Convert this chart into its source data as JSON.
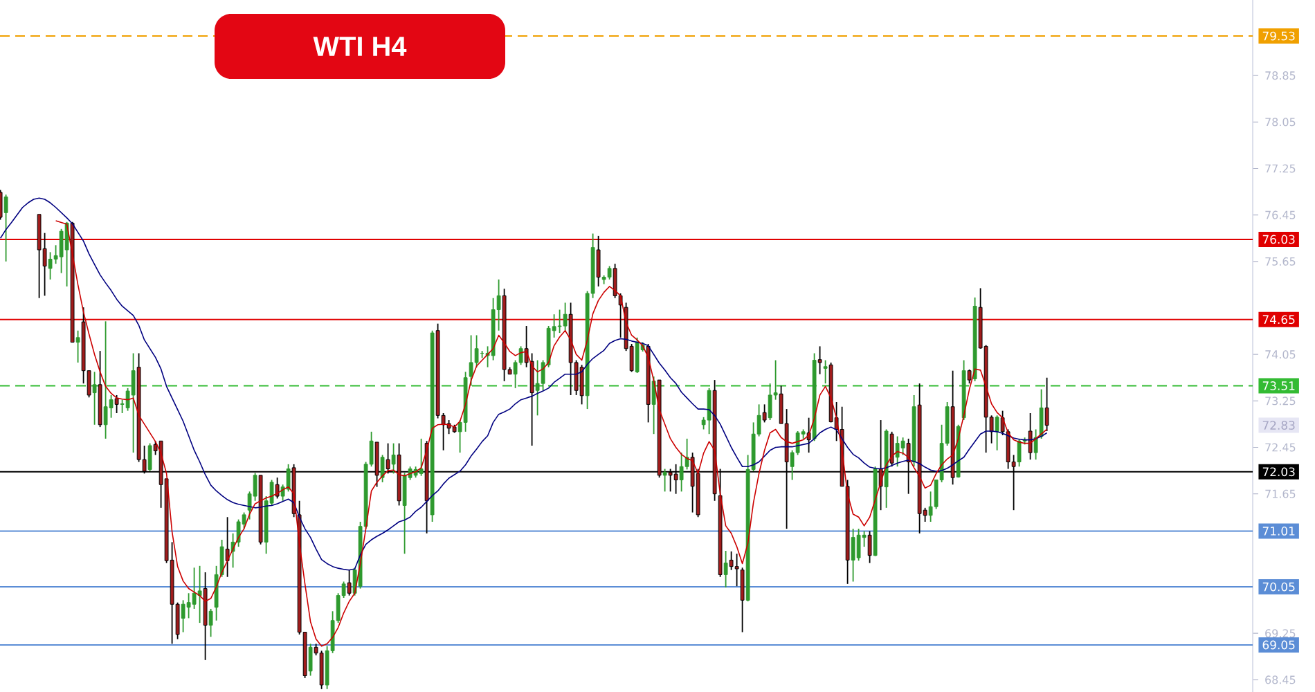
{
  "chart_data": {
    "type": "candlestick",
    "title": "WTI H4",
    "categories": [
      null,
      null,
      null,
      null,
      null,
      null,
      null,
      null,
      null,
      null,
      null,
      null,
      null,
      null,
      null,
      null,
      null,
      null,
      null,
      null,
      null,
      null,
      null,
      null,
      null,
      null,
      null,
      null,
      null,
      null,
      null,
      null,
      null,
      null,
      null,
      null,
      null,
      null,
      null,
      null,
      null,
      null,
      null,
      null,
      null,
      null,
      null,
      null,
      null,
      null,
      null,
      null,
      null,
      null,
      null,
      null,
      null,
      null,
      null,
      null,
      null,
      null,
      null,
      null,
      null,
      null,
      null,
      null,
      null,
      null,
      null,
      null,
      null,
      null,
      null,
      null,
      null,
      null,
      null,
      null,
      null,
      null,
      null,
      null,
      null,
      null,
      null,
      null,
      null,
      null,
      null,
      null,
      null,
      null,
      null,
      null,
      null,
      null,
      null,
      null,
      null,
      null,
      null,
      null,
      null,
      null,
      null,
      null,
      null,
      null,
      null,
      null,
      null,
      null,
      null,
      null,
      null,
      null,
      null,
      null,
      null,
      null,
      null,
      null,
      null,
      null,
      null,
      null,
      null,
      null,
      null,
      null,
      null,
      null,
      null,
      null,
      null,
      null,
      null,
      null,
      null,
      null,
      null,
      null,
      null,
      null,
      null,
      null,
      null,
      null,
      null,
      null,
      null,
      null,
      null,
      null,
      null,
      null,
      null,
      null,
      null,
      null,
      null,
      null,
      null,
      null,
      null,
      null,
      null,
      null,
      null,
      null,
      null,
      null,
      null,
      null,
      null,
      null,
      null,
      null,
      null,
      null,
      null,
      null,
      null,
      null,
      null,
      null,
      null,
      null
    ],
    "ohlc": [
      [
        76.84,
        76.88,
        76.37,
        76.41
      ],
      [
        76.49,
        76.8,
        75.65,
        76.76
      ],
      null,
      null,
      null,
      null,
      null,
      [
        76.46,
        76.46,
        75.02,
        75.85
      ],
      [
        75.87,
        76.14,
        75.06,
        75.57
      ],
      [
        75.53,
        75.81,
        75.34,
        75.69
      ],
      [
        75.69,
        75.93,
        75.61,
        75.75
      ],
      [
        75.73,
        76.21,
        75.45,
        76.17
      ],
      [
        75.85,
        76.33,
        75.22,
        76.31
      ],
      [
        76.31,
        76.33,
        74.26,
        74.26
      ],
      [
        74.26,
        74.46,
        73.91,
        74.34
      ],
      [
        74.61,
        74.86,
        73.55,
        73.77
      ],
      [
        73.77,
        73.77,
        73.31,
        73.35
      ],
      [
        73.39,
        73.75,
        72.84,
        73.53
      ],
      [
        73.53,
        74.11,
        72.8,
        72.84
      ],
      [
        72.84,
        74.62,
        72.6,
        73.15
      ],
      [
        73.13,
        73.35,
        72.96,
        73.27
      ],
      [
        73.29,
        73.35,
        73.04,
        73.19
      ],
      [
        73.19,
        73.27,
        73.04,
        73.2
      ],
      [
        73.13,
        73.47,
        73.08,
        73.42
      ],
      [
        73.35,
        74.07,
        72.36,
        73.77
      ],
      [
        73.83,
        74.07,
        72.2,
        72.24
      ],
      [
        72.24,
        72.48,
        72.0,
        72.04
      ],
      [
        72.07,
        72.52,
        72.04,
        72.48
      ],
      [
        72.5,
        72.56,
        72.32,
        72.39
      ],
      [
        72.56,
        72.56,
        71.41,
        71.81
      ],
      [
        71.91,
        71.91,
        70.46,
        70.5
      ],
      [
        70.51,
        70.82,
        69.07,
        69.75
      ],
      [
        69.75,
        69.78,
        69.15,
        69.23
      ],
      [
        69.51,
        69.82,
        69.27,
        69.75
      ],
      [
        69.7,
        69.94,
        69.51,
        69.78
      ],
      [
        69.75,
        70.38,
        69.67,
        69.94
      ],
      [
        69.9,
        70.41,
        69.43,
        69.98
      ],
      [
        70.02,
        70.3,
        68.79,
        69.39
      ],
      [
        69.39,
        69.67,
        69.19,
        69.63
      ],
      [
        69.7,
        70.41,
        69.47,
        70.26
      ],
      [
        70.26,
        70.86,
        70.22,
        70.74
      ],
      [
        70.7,
        71.25,
        70.22,
        70.5
      ],
      [
        70.66,
        70.97,
        70.38,
        70.82
      ],
      [
        70.82,
        71.21,
        70.74,
        71.17
      ],
      [
        71.13,
        71.33,
        71.05,
        71.29
      ],
      [
        71.37,
        71.69,
        71.21,
        71.65
      ],
      [
        71.61,
        72.01,
        71.53,
        71.97
      ],
      [
        71.97,
        71.97,
        70.78,
        70.82
      ],
      [
        70.82,
        71.61,
        70.62,
        71.53
      ],
      [
        71.49,
        71.89,
        71.45,
        71.85
      ],
      [
        71.81,
        71.93,
        71.57,
        71.61
      ],
      [
        71.61,
        71.81,
        71.53,
        71.77
      ],
      [
        71.73,
        72.16,
        71.69,
        72.08
      ],
      [
        72.1,
        72.16,
        71.25,
        71.31
      ],
      [
        71.29,
        71.53,
        69.23,
        69.27
      ],
      [
        69.27,
        69.27,
        68.48,
        68.52
      ],
      [
        68.6,
        69.07,
        68.52,
        69.01
      ],
      [
        69.01,
        69.07,
        68.87,
        68.91
      ],
      [
        68.91,
        68.95,
        68.29,
        68.36
      ],
      [
        68.36,
        69.03,
        68.29,
        68.95
      ],
      [
        68.95,
        69.63,
        68.91,
        69.47
      ],
      [
        69.47,
        69.94,
        69.43,
        69.9
      ],
      [
        69.9,
        70.14,
        69.86,
        70.1
      ],
      [
        70.12,
        70.34,
        69.9,
        69.94
      ],
      [
        69.94,
        70.38,
        69.9,
        70.34
      ],
      [
        70.06,
        71.17,
        70.02,
        71.09
      ],
      [
        71.09,
        72.2,
        71.05,
        72.16
      ],
      [
        72.16,
        72.72,
        72.12,
        72.56
      ],
      [
        72.54,
        72.54,
        71.77,
        71.97
      ],
      [
        71.93,
        72.32,
        71.85,
        72.28
      ],
      [
        72.24,
        72.52,
        72.0,
        72.08
      ],
      [
        72.16,
        72.52,
        72.0,
        72.32
      ],
      [
        72.32,
        72.52,
        71.45,
        71.53
      ],
      [
        71.45,
        72.01,
        70.62,
        71.97
      ],
      [
        71.93,
        72.12,
        71.89,
        72.08
      ],
      [
        71.97,
        72.12,
        71.93,
        72.07
      ],
      [
        72.0,
        72.6,
        71.96,
        72.08
      ],
      [
        72.52,
        72.56,
        70.97,
        71.53
      ],
      [
        71.29,
        74.46,
        71.17,
        74.42
      ],
      [
        74.46,
        74.58,
        72.95,
        73.0
      ],
      [
        73.0,
        73.04,
        72.4,
        72.84
      ],
      [
        72.86,
        72.92,
        72.68,
        72.78
      ],
      [
        72.8,
        72.84,
        72.7,
        72.72
      ],
      [
        72.72,
        72.92,
        72.36,
        72.88
      ],
      [
        72.88,
        73.75,
        72.72,
        73.65
      ],
      [
        73.67,
        74.38,
        73.51,
        73.91
      ],
      [
        73.91,
        74.38,
        73.83,
        74.15
      ],
      [
        74.07,
        74.11,
        73.99,
        74.07
      ],
      [
        74.03,
        74.19,
        73.83,
        74.07
      ],
      [
        74.03,
        75.02,
        73.95,
        74.82
      ],
      [
        74.82,
        75.34,
        74.46,
        75.06
      ],
      [
        75.06,
        75.18,
        73.59,
        73.79
      ],
      [
        73.79,
        73.83,
        73.71,
        73.71
      ],
      [
        73.71,
        73.95,
        73.47,
        73.91
      ],
      [
        73.91,
        74.19,
        73.87,
        74.15
      ],
      [
        74.15,
        74.54,
        73.83,
        73.91
      ],
      [
        73.93,
        74.07,
        72.48,
        73.39
      ],
      [
        73.43,
        73.95,
        73.0,
        73.55
      ],
      [
        73.55,
        73.95,
        73.43,
        73.91
      ],
      [
        73.87,
        74.54,
        73.83,
        74.5
      ],
      [
        74.46,
        74.74,
        74.34,
        74.53
      ],
      [
        74.53,
        74.82,
        74.42,
        74.54
      ],
      [
        74.54,
        74.94,
        74.46,
        74.74
      ],
      [
        74.74,
        74.94,
        73.35,
        73.91
      ],
      [
        73.91,
        73.95,
        73.35,
        73.43
      ],
      [
        73.83,
        73.87,
        73.19,
        73.34
      ],
      [
        73.34,
        75.14,
        73.11,
        75.1
      ],
      [
        75.1,
        76.13,
        75.02,
        75.89
      ],
      [
        75.85,
        76.09,
        75.22,
        75.38
      ],
      [
        75.34,
        75.41,
        75.26,
        75.38
      ],
      [
        75.38,
        75.57,
        75.34,
        75.53
      ],
      [
        75.53,
        75.61,
        75.02,
        75.06
      ],
      [
        75.06,
        75.1,
        74.34,
        74.9
      ],
      [
        74.86,
        74.94,
        74.11,
        74.15
      ],
      [
        74.19,
        74.23,
        73.75,
        73.77
      ],
      [
        73.75,
        74.34,
        73.73,
        74.26
      ],
      [
        74.13,
        74.26,
        74.1,
        74.21
      ],
      [
        74.19,
        74.23,
        72.88,
        73.19
      ],
      [
        73.19,
        73.67,
        72.68,
        73.59
      ],
      [
        73.61,
        73.61,
        71.93,
        71.97
      ],
      [
        71.97,
        72.08,
        71.69,
        72.02
      ],
      [
        72.02,
        72.08,
        71.69,
        71.97
      ],
      [
        71.99,
        72.16,
        71.65,
        71.89
      ],
      [
        71.89,
        72.36,
        71.69,
        72.12
      ],
      [
        72.12,
        72.6,
        72.07,
        72.28
      ],
      [
        72.28,
        72.36,
        71.33,
        71.78
      ],
      [
        72.0,
        72.08,
        71.25,
        71.29
      ],
      [
        72.84,
        72.97,
        72.76,
        72.92
      ],
      [
        72.92,
        73.47,
        72.68,
        73.43
      ],
      [
        73.43,
        73.61,
        71.53,
        71.65
      ],
      [
        71.62,
        72.08,
        70.22,
        70.26
      ],
      [
        70.26,
        70.67,
        70.04,
        70.46
      ],
      [
        70.51,
        70.66,
        70.34,
        70.4
      ],
      [
        70.4,
        70.62,
        70.06,
        70.36
      ],
      [
        70.34,
        70.38,
        69.27,
        69.82
      ],
      [
        69.82,
        72.32,
        69.8,
        72.07
      ],
      [
        72.07,
        72.88,
        72.04,
        72.68
      ],
      [
        72.68,
        73.19,
        72.64,
        73.0
      ],
      [
        73.05,
        73.19,
        72.88,
        72.92
      ],
      [
        72.96,
        73.55,
        72.92,
        73.35
      ],
      [
        73.35,
        73.95,
        73.27,
        73.39
      ],
      [
        73.37,
        73.51,
        72.86,
        72.86
      ],
      [
        72.86,
        73.11,
        71.05,
        72.2
      ],
      [
        72.12,
        72.4,
        71.89,
        72.36
      ],
      [
        72.36,
        72.73,
        72.32,
        72.7
      ],
      [
        72.68,
        72.76,
        72.6,
        72.72
      ],
      [
        72.7,
        72.96,
        72.36,
        72.58
      ],
      [
        72.6,
        74.07,
        72.56,
        73.95
      ],
      [
        73.96,
        74.19,
        73.71,
        73.91
      ],
      [
        73.81,
        73.95,
        73.55,
        73.84
      ],
      [
        73.87,
        73.91,
        72.88,
        72.89
      ],
      [
        72.96,
        73.23,
        72.56,
        72.76
      ],
      [
        72.76,
        73.15,
        71.78,
        71.78
      ],
      [
        71.78,
        71.89,
        70.1,
        70.51
      ],
      [
        70.51,
        71.05,
        70.14,
        70.9
      ],
      [
        70.55,
        71.05,
        70.5,
        70.94
      ],
      [
        70.9,
        71.01,
        70.74,
        70.94
      ],
      [
        70.94,
        71.01,
        70.46,
        70.59
      ],
      [
        70.59,
        72.12,
        70.58,
        72.08
      ],
      [
        72.08,
        72.92,
        71.37,
        71.78
      ],
      [
        71.77,
        72.76,
        71.41,
        72.73
      ],
      [
        72.68,
        72.72,
        72.12,
        72.18
      ],
      [
        72.28,
        72.64,
        72.12,
        72.52
      ],
      [
        72.44,
        72.62,
        72.32,
        72.56
      ],
      [
        72.52,
        72.6,
        71.65,
        72.2
      ],
      [
        72.2,
        73.35,
        72.12,
        73.15
      ],
      [
        73.18,
        73.55,
        70.97,
        71.31
      ],
      [
        71.37,
        71.41,
        71.17,
        71.28
      ],
      [
        71.28,
        71.69,
        71.17,
        71.43
      ],
      [
        71.43,
        71.89,
        71.39,
        71.89
      ],
      [
        71.89,
        72.84,
        71.85,
        72.52
      ],
      [
        72.52,
        73.23,
        72.48,
        73.15
      ],
      [
        73.15,
        73.77,
        71.81,
        71.93
      ],
      [
        71.94,
        72.84,
        71.93,
        72.81
      ],
      [
        72.96,
        73.95,
        72.92,
        73.77
      ],
      [
        73.77,
        73.79,
        73.55,
        73.61
      ],
      [
        73.63,
        75.03,
        73.59,
        74.88
      ],
      [
        74.86,
        75.19,
        74.15,
        74.16
      ],
      [
        74.19,
        74.21,
        72.36,
        72.97
      ],
      [
        72.97,
        73.0,
        72.52,
        72.72
      ],
      [
        72.72,
        73.0,
        72.4,
        72.97
      ],
      [
        72.96,
        73.08,
        72.66,
        72.72
      ],
      [
        72.72,
        72.76,
        72.08,
        72.2
      ],
      [
        72.2,
        72.32,
        71.37,
        72.12
      ],
      [
        72.2,
        72.6,
        72.12,
        72.56
      ],
      [
        72.56,
        72.62,
        72.5,
        72.58
      ],
      [
        72.73,
        73.04,
        72.24,
        72.36
      ],
      [
        72.36,
        72.76,
        72.24,
        72.62
      ],
      [
        72.64,
        73.45,
        72.6,
        73.13
      ],
      [
        73.13,
        73.65,
        72.73,
        72.83
      ]
    ],
    "series": [
      {
        "type": "line",
        "color": "#000080",
        "values": [
          76.05,
          76.2,
          76.32,
          76.45,
          76.58,
          76.66,
          76.72,
          76.74,
          76.72,
          76.66,
          76.58,
          76.49,
          76.4,
          76.3,
          76.15,
          76.0,
          75.78,
          75.6,
          75.42,
          75.28,
          75.15,
          75.0,
          74.88,
          74.8,
          74.72,
          74.55,
          74.3,
          74.15,
          74.0,
          73.8,
          73.5,
          73.3,
          73.1,
          72.9,
          72.65,
          72.4,
          72.2,
          71.98,
          71.8,
          71.7,
          71.62,
          71.55,
          71.5,
          71.47,
          71.45,
          71.43,
          71.41,
          71.42,
          71.44,
          71.45,
          71.48,
          71.52,
          71.56,
          71.5,
          71.25,
          71.05,
          70.9,
          70.7,
          70.52,
          70.45,
          70.4,
          70.37,
          70.35,
          70.34,
          70.36,
          70.6,
          70.78,
          70.86,
          70.92,
          70.97,
          71.03,
          71.1,
          71.17,
          71.2,
          71.25,
          71.35,
          71.42,
          71.52,
          71.62,
          71.7,
          71.82,
          71.92,
          71.98,
          72.04,
          72.15,
          72.3,
          72.42,
          72.55,
          72.65,
          72.88,
          73.02,
          73.06,
          73.11,
          73.2,
          73.27,
          73.3,
          73.33,
          73.38,
          73.42,
          73.47,
          73.57,
          73.64,
          73.71,
          73.71,
          73.71,
          73.75,
          73.88,
          73.98,
          74.05,
          74.12,
          74.24,
          74.29,
          74.32,
          74.31,
          74.28,
          74.26,
          74.24,
          74.2,
          74.05,
          73.9,
          73.78,
          73.65,
          73.55,
          73.4,
          73.3,
          73.2,
          73.11,
          73.11,
          73.1,
          73.0,
          72.85,
          72.65,
          72.45,
          72.28,
          72.12,
          72.12,
          72.15,
          72.2,
          72.3,
          72.4,
          72.45,
          72.46,
          72.46,
          72.46,
          72.48,
          72.5,
          72.52,
          72.6,
          72.7,
          72.76,
          72.8,
          72.75,
          72.6,
          72.45,
          72.33,
          72.27,
          72.18,
          72.11,
          72.09,
          72.08,
          72.1,
          72.14,
          72.18,
          72.21,
          72.23,
          72.21,
          72.17,
          72.11,
          72.06,
          72.04,
          72.05,
          72.09,
          72.15,
          72.22,
          72.28,
          72.42,
          72.55,
          72.68,
          72.73,
          72.73,
          72.72,
          72.69,
          72.65,
          72.61,
          72.59,
          72.58,
          72.58,
          72.6,
          72.64,
          72.7
        ]
      },
      {
        "type": "line",
        "color": "#cc0000",
        "values": [
          null,
          null,
          null,
          null,
          null,
          null,
          null,
          null,
          null,
          null,
          76.35,
          76.32,
          76.29,
          75.78,
          75.25,
          74.78,
          74.4,
          74.05,
          73.75,
          73.5,
          73.38,
          73.3,
          73.28,
          73.27,
          73.3,
          73.0,
          72.85,
          72.7,
          72.55,
          72.35,
          72.0,
          71.0,
          70.4,
          70.15,
          70.02,
          69.96,
          69.9,
          69.8,
          69.85,
          70.05,
          70.3,
          70.5,
          70.7,
          70.9,
          71.05,
          71.3,
          71.48,
          71.53,
          71.58,
          71.61,
          71.66,
          71.72,
          71.77,
          71.65,
          70.8,
          70.1,
          69.45,
          69.15,
          69.03,
          69.07,
          69.18,
          69.35,
          69.6,
          69.8,
          69.94,
          70.45,
          71.05,
          71.7,
          71.85,
          71.96,
          72.05,
          72.06,
          71.98,
          71.96,
          72.0,
          72.03,
          72.1,
          72.4,
          72.78,
          72.84,
          72.85,
          72.84,
          72.8,
          72.9,
          73.19,
          73.6,
          73.85,
          73.95,
          74.05,
          74.15,
          74.38,
          74.25,
          74.1,
          74.03,
          74.08,
          74.1,
          73.85,
          73.75,
          73.8,
          73.91,
          74.2,
          74.35,
          74.46,
          74.3,
          74.05,
          73.95,
          74.3,
          74.75,
          74.98,
          75.12,
          75.22,
          75.15,
          75.06,
          74.6,
          74.38,
          74.3,
          74.2,
          74.0,
          73.6,
          73.1,
          72.85,
          72.6,
          72.45,
          72.33,
          72.26,
          72.22,
          72.0,
          72.35,
          72.55,
          72.4,
          71.65,
          71.1,
          70.97,
          70.74,
          70.45,
          70.8,
          71.5,
          72.0,
          72.4,
          72.7,
          72.76,
          72.62,
          72.55,
          72.52,
          72.55,
          72.58,
          72.66,
          72.95,
          73.35,
          73.5,
          73.3,
          72.96,
          72.4,
          71.65,
          71.3,
          71.25,
          71.1,
          71.25,
          71.55,
          71.85,
          72.15,
          72.3,
          72.38,
          72.35,
          72.28,
          72.1,
          71.95,
          71.75,
          71.8,
          72.0,
          72.15,
          72.25,
          72.32,
          72.6,
          73.0,
          73.45,
          73.8,
          73.78,
          73.5,
          73.2,
          73.05,
          72.96,
          72.7,
          72.58,
          72.54,
          72.52,
          72.52,
          72.6,
          72.68,
          72.76
        ]
      }
    ],
    "ylim": [
      68.24,
      80.15
    ],
    "yticks": [
      68.45,
      69.25,
      71.65,
      72.45,
      73.25,
      74.05,
      75.65,
      76.45,
      77.25,
      78.05,
      78.85
    ],
    "tick_labels": "y",
    "ref_lines": [
      {
        "axis": "y",
        "value": 79.53,
        "label": "79.53",
        "color": "#f0a000",
        "line_style": "dashed"
      },
      {
        "axis": "y",
        "value": 76.03,
        "label": "76.03",
        "color": "#e00000"
      },
      {
        "axis": "y",
        "value": 74.65,
        "label": "74.65",
        "color": "#e00000"
      },
      {
        "axis": "y",
        "value": 73.51,
        "label": "73.51",
        "color": "#33bb33",
        "line_style": "dashed"
      },
      {
        "axis": "y",
        "value": 72.03,
        "label": "72.03",
        "color": "#000000"
      },
      {
        "axis": "y",
        "value": 71.01,
        "label": "71.01",
        "color": "#5b8dd6"
      },
      {
        "axis": "y",
        "value": 70.05,
        "label": "70.05",
        "color": "#5b8dd6"
      },
      {
        "axis": "y",
        "value": 69.05,
        "label": "69.05",
        "color": "#5b8dd6"
      }
    ],
    "annotations": [
      "72.83"
    ]
  }
}
